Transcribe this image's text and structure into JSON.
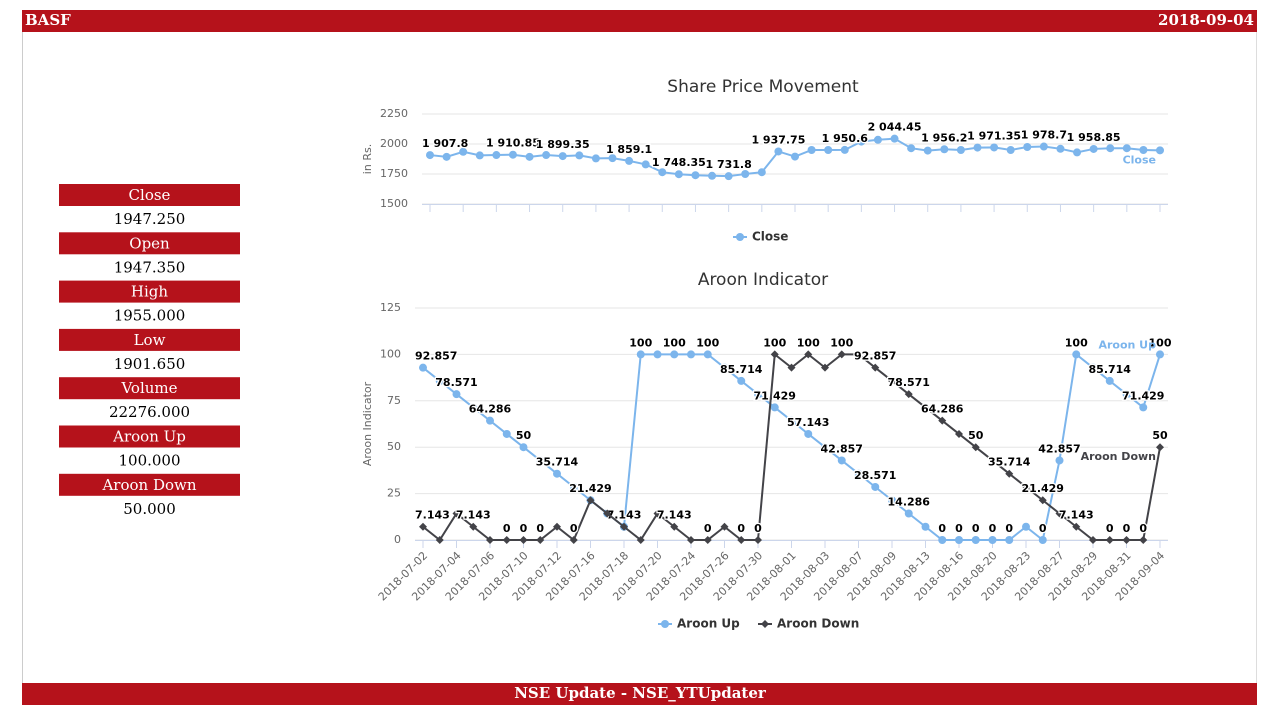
{
  "header": {
    "title": "BASF",
    "date": "2018-09-04"
  },
  "footer": "NSE Update - NSE_YTUpdater",
  "stats": [
    {
      "label": "Close",
      "value": "1947.250"
    },
    {
      "label": "Open",
      "value": "1947.350"
    },
    {
      "label": "High",
      "value": "1955.000"
    },
    {
      "label": "Low",
      "value": "1901.650"
    },
    {
      "label": "Volume",
      "value": "22276.000"
    },
    {
      "label": "Aroon Up",
      "value": "100.000"
    },
    {
      "label": "Aroon Down",
      "value": "50.000"
    }
  ],
  "chart_data": [
    {
      "type": "line",
      "title": "Share Price Movement",
      "y_label": "in Rs.",
      "ylim": [
        1500,
        2250
      ],
      "yticks": [
        1500,
        1750,
        2000,
        2250
      ],
      "grid": true,
      "series": [
        {
          "name": "Close",
          "color": "#7cb5ec",
          "marker": "circle",
          "values": [
            1907.8,
            1893,
            1935,
            1905,
            1908,
            1910.85,
            1893,
            1908,
            1899.35,
            1905,
            1880,
            1882,
            1859.1,
            1830,
            1765,
            1748.35,
            1740,
            1735,
            1731.8,
            1750,
            1765,
            1937.75,
            1895,
            1950,
            1950,
            1950.6,
            2020,
            2035,
            2044.45,
            1965,
            1945,
            1956.2,
            1950,
            1970,
            1971.35,
            1950,
            1975,
            1978.7,
            1960,
            1930,
            1958.85,
            1965,
            1965,
            1950,
            1947.25
          ],
          "value_labels": [
            "1 907.8",
            null,
            null,
            null,
            null,
            "1 910.85",
            null,
            null,
            "1 899.35",
            null,
            null,
            null,
            "1 859.1",
            null,
            null,
            "1 748.35",
            null,
            null,
            "1 731.8",
            null,
            null,
            "1 937.75",
            null,
            null,
            null,
            "1 950.6",
            null,
            null,
            "2 044.45",
            null,
            null,
            "1 956.2",
            null,
            null,
            "1 971.35",
            null,
            null,
            "1 978.7",
            null,
            null,
            "1 958.85",
            null,
            null,
            null,
            null
          ]
        }
      ]
    },
    {
      "type": "line",
      "title": "Aroon Indicator",
      "y_label": "Aroon Indicator",
      "ylim": [
        0,
        125
      ],
      "yticks": [
        0,
        25,
        50,
        75,
        100,
        125
      ],
      "grid": true,
      "categories": [
        "2018-07-02",
        null,
        "2018-07-04",
        null,
        "2018-07-06",
        null,
        "2018-07-10",
        null,
        "2018-07-12",
        null,
        "2018-07-16",
        null,
        "2018-07-18",
        null,
        "2018-07-20",
        null,
        "2018-07-24",
        null,
        "2018-07-26",
        null,
        "2018-07-30",
        null,
        "2018-08-01",
        null,
        "2018-08-03",
        null,
        "2018-08-07",
        null,
        "2018-08-09",
        null,
        "2018-08-13",
        null,
        "2018-08-16",
        null,
        "2018-08-20",
        null,
        "2018-08-23",
        null,
        "2018-08-27",
        null,
        "2018-08-29",
        null,
        "2018-08-31",
        null,
        "2018-09-04"
      ],
      "series": [
        {
          "name": "Aroon Up",
          "color": "#7cb5ec",
          "marker": "circle",
          "values": [
            92.857,
            85.714,
            78.571,
            71.429,
            64.286,
            57.143,
            50,
            42.857,
            35.714,
            28.571,
            21.429,
            14.286,
            7.143,
            100,
            100,
            100,
            100,
            100,
            92.857,
            85.714,
            78.571,
            71.429,
            64.286,
            57.143,
            50,
            42.857,
            35.714,
            28.571,
            21.429,
            14.286,
            7.143,
            0,
            0,
            0,
            0,
            0,
            7.143,
            0,
            42.857,
            100,
            92.857,
            85.714,
            78.571,
            71.429,
            100
          ]
        },
        {
          "name": "Aroon Down",
          "color": "#434348",
          "marker": "diamond",
          "values": [
            7.143,
            0,
            14.286,
            7.143,
            0,
            0,
            0,
            0,
            7.143,
            0,
            21.429,
            14.286,
            7.143,
            0,
            14.286,
            7.143,
            0,
            0,
            7.143,
            0,
            0,
            100,
            92.857,
            100,
            92.857,
            100,
            100,
            92.857,
            85.714,
            78.571,
            71.429,
            64.286,
            57.143,
            50,
            42.857,
            35.714,
            28.571,
            21.429,
            14.286,
            7.143,
            0,
            0,
            0,
            0,
            50
          ]
        }
      ]
    }
  ]
}
